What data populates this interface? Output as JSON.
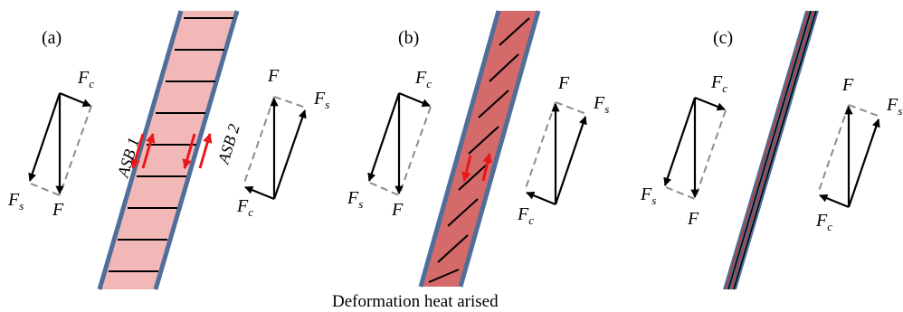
{
  "panels": [
    {
      "label": "(a)",
      "asb_labels": [
        "ASB 1",
        "ASB 2"
      ],
      "left_vectors": {
        "F": "F",
        "Fc_main": "F",
        "Fc_sub": "c",
        "Fs_main": "F",
        "Fs_sub": "s"
      },
      "right_vectors": {
        "F": "F",
        "Fs_main": "F",
        "Fs_sub": "s",
        "Fc_main": "F",
        "Fc_sub": "c"
      }
    },
    {
      "label": "(b)",
      "left_vectors": {
        "F": "F",
        "Fc_main": "F",
        "Fc_sub": "c",
        "Fs_main": "F",
        "Fs_sub": "s"
      },
      "right_vectors": {
        "F": "F",
        "Fs_main": "F",
        "Fs_sub": "s",
        "Fc_main": "F",
        "Fc_sub": "c"
      }
    },
    {
      "label": "(c)",
      "left_vectors": {
        "F": "F",
        "Fc_main": "F",
        "Fc_sub": "c",
        "Fs_main": "F",
        "Fs_sub": "s"
      },
      "right_vectors": {
        "F": "F",
        "Fs_main": "F",
        "Fs_sub": "s",
        "Fc_main": "F",
        "Fc_sub": "c"
      }
    }
  ],
  "caption": "Deformation heat arised",
  "colors": {
    "band_edge": "#4f6f9a",
    "band_fill_light": "#f2b8b8",
    "band_fill_medium": "#d46a6a",
    "band_fill_dark": "#c0392b",
    "shear_arrow": "#e8181c",
    "dashed": "#8c8c8c",
    "vector": "#000000"
  }
}
